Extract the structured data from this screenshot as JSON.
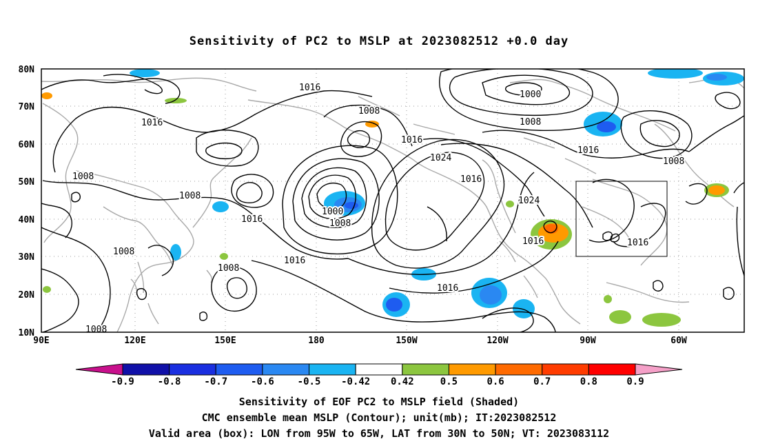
{
  "title": "Sensitivity of PC2 to MSLP at 2023082512 +0.0 day",
  "lat_labels": [
    "80N",
    "70N",
    "60N",
    "50N",
    "40N",
    "30N",
    "20N",
    "10N"
  ],
  "lon_labels": [
    "90E",
    "120E",
    "150E",
    "180",
    "150W",
    "120W",
    "90W",
    "60W"
  ],
  "contour_labels": [
    {
      "text": "1016"
    },
    {
      "text": "1000"
    },
    {
      "text": "1008"
    },
    {
      "text": "1008"
    },
    {
      "text": "1016"
    },
    {
      "text": "1016"
    },
    {
      "text": "1024"
    },
    {
      "text": "1016"
    },
    {
      "text": "1016"
    },
    {
      "text": "1008"
    },
    {
      "text": "1008"
    },
    {
      "text": "1008"
    },
    {
      "text": "1016"
    },
    {
      "text": "1000"
    },
    {
      "text": "1008"
    },
    {
      "text": "1024"
    },
    {
      "text": "1016"
    },
    {
      "text": "1016"
    },
    {
      "text": "1008"
    },
    {
      "text": "1016"
    },
    {
      "text": "1008"
    },
    {
      "text": "1016"
    },
    {
      "text": "1008"
    }
  ],
  "colorbar": {
    "labels": [
      "-0.9",
      "-0.8",
      "-0.7",
      "-0.6",
      "-0.5",
      "-0.42",
      "0.42",
      "0.5",
      "0.6",
      "0.7",
      "0.8",
      "0.9"
    ],
    "colors": [
      "#1010a8",
      "#1a2fe0",
      "#1e5cf0",
      "#2a88f2",
      "#1ab4f2",
      "#ffffff",
      "#8cc63f",
      "#ff9a00",
      "#ff6a00",
      "#ff3c00",
      "#ff0000"
    ],
    "left_end_color": "#c8108c",
    "right_end_color": "#f5a0c8"
  },
  "captions": {
    "line1": "Sensitivity of EOF PC2 to MSLP field (Shaded)",
    "line2": "CMC ensemble mean MSLP (Contour); unit(mb); IT:2023082512",
    "line3": "Valid area (box): LON from 95W to 65W, LAT from 30N to 50N; VT: 2023083112"
  },
  "map": {
    "lon_range_deg_east": [
      90,
      312
    ],
    "lat_range": [
      10,
      80
    ],
    "valid_box": {
      "lon_west": -95,
      "lon_east": -65,
      "lat_south": 30,
      "lat_north": 50
    }
  }
}
